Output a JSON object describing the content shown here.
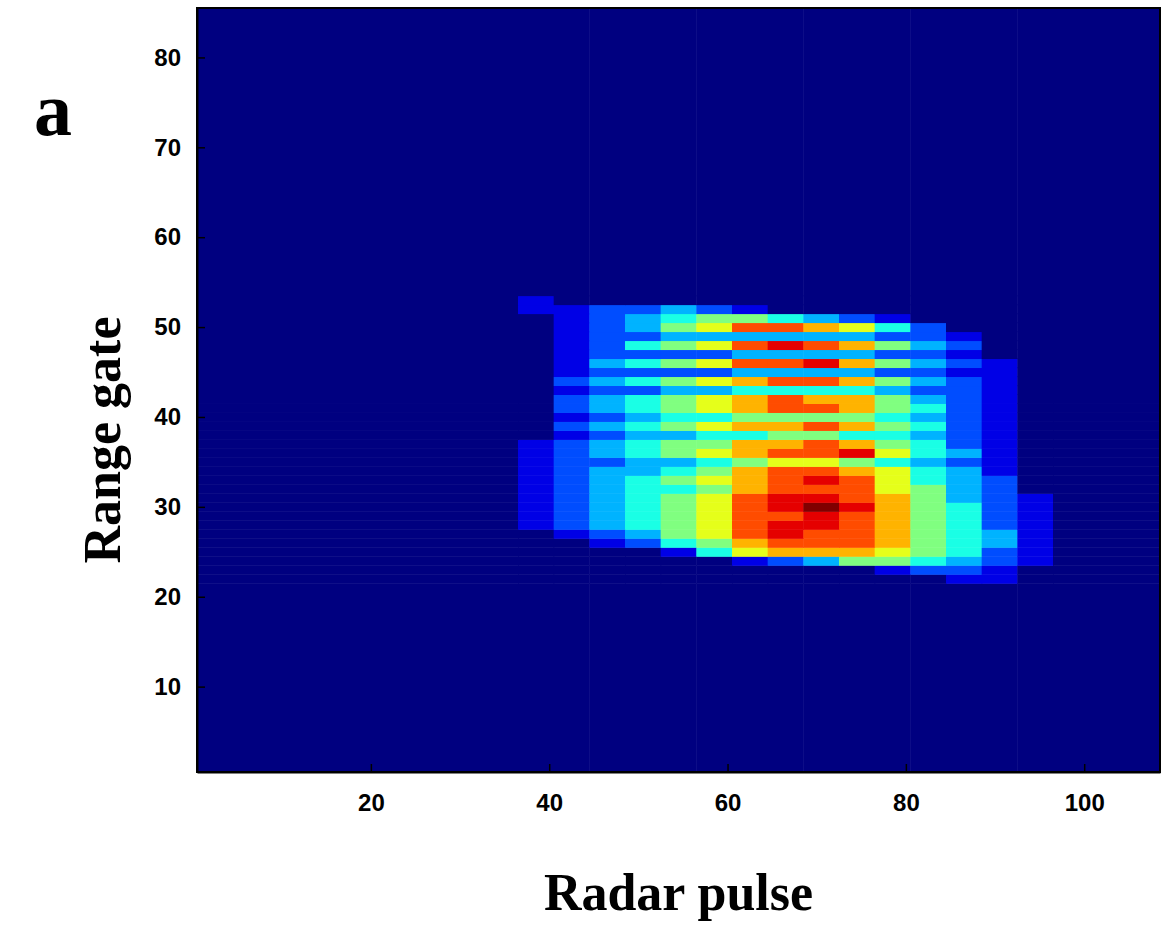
{
  "chart_data": {
    "type": "heatmap",
    "panel_label": "a",
    "x_label": "Radar pulse",
    "y_label": "Range gate",
    "xlim": [
      0.5,
      108.5
    ],
    "ylim": [
      0.5,
      85.5
    ],
    "xticks": [
      20,
      40,
      60,
      80,
      100
    ],
    "yticks": [
      10,
      20,
      30,
      40,
      50,
      60,
      70,
      80
    ],
    "zlim": [
      0,
      10
    ],
    "x_edges": [
      0.5,
      36.5,
      40.5,
      44.5,
      48.5,
      52.5,
      56.5,
      60.5,
      64.5,
      68.5,
      72.5,
      76.5,
      80.5,
      84.5,
      88.5,
      92.5,
      96.5,
      108.5
    ],
    "y_edges": [
      0.5,
      21.5,
      22.5,
      23.5,
      24.5,
      25.5,
      26.5,
      27.5,
      28.5,
      29.5,
      30.5,
      31.5,
      32.5,
      33.5,
      34.5,
      35.5,
      36.5,
      37.5,
      38.5,
      39.5,
      40.5,
      41.5,
      42.5,
      43.5,
      44.5,
      45.5,
      46.5,
      47.5,
      48.5,
      49.5,
      50.5,
      51.5,
      52.5,
      53.5,
      85.5
    ],
    "z": [
      [
        0,
        0,
        0,
        0,
        0,
        0,
        0,
        0,
        0,
        0,
        0,
        0,
        0,
        0,
        0,
        0,
        0
      ],
      [
        0,
        0,
        0,
        0,
        0,
        0,
        0,
        0,
        0,
        0,
        0,
        0,
        0,
        1,
        1,
        0,
        0
      ],
      [
        0,
        0,
        0,
        0,
        0,
        0,
        0,
        0,
        0,
        0,
        0,
        1,
        2,
        2,
        1,
        0,
        0
      ],
      [
        0,
        0,
        0,
        0,
        0,
        0,
        0,
        1,
        2,
        3,
        5,
        5,
        4,
        3,
        2,
        1,
        0
      ],
      [
        0,
        0,
        0,
        0,
        0,
        1,
        4,
        6,
        7,
        7,
        7,
        6,
        5,
        4,
        2,
        1,
        0
      ],
      [
        0,
        0,
        0,
        1,
        2,
        4,
        5,
        7,
        8,
        8,
        8,
        7,
        5,
        4,
        3,
        1,
        0
      ],
      [
        0,
        0,
        1,
        2,
        3,
        5,
        6,
        8,
        9,
        8,
        8,
        7,
        5,
        4,
        3,
        1,
        0
      ],
      [
        0,
        1,
        2,
        3,
        4,
        5,
        6,
        8,
        9,
        9,
        8,
        7,
        5,
        4,
        2,
        1,
        0
      ],
      [
        0,
        1,
        2,
        3,
        4,
        5,
        6,
        8,
        8,
        9,
        8,
        7,
        5,
        4,
        2,
        1,
        0
      ],
      [
        0,
        1,
        2,
        3,
        4,
        5,
        6,
        8,
        9,
        10,
        9,
        7,
        5,
        4,
        2,
        1,
        0
      ],
      [
        0,
        1,
        2,
        3,
        4,
        5,
        6,
        8,
        9,
        9,
        8,
        7,
        5,
        3,
        2,
        1,
        0
      ],
      [
        0,
        1,
        2,
        3,
        4,
        4,
        5,
        7,
        8,
        8,
        8,
        6,
        5,
        3,
        2,
        0,
        0
      ],
      [
        0,
        1,
        2,
        3,
        4,
        5,
        6,
        7,
        8,
        9,
        8,
        6,
        4,
        3,
        2,
        0,
        0
      ],
      [
        0,
        1,
        2,
        3,
        3,
        4,
        5,
        7,
        8,
        8,
        7,
        6,
        4,
        3,
        1,
        0,
        0
      ],
      [
        0,
        1,
        2,
        2,
        3,
        3,
        4,
        5,
        6,
        6,
        5,
        4,
        3,
        2,
        1,
        0,
        0
      ],
      [
        0,
        1,
        2,
        3,
        4,
        5,
        6,
        7,
        8,
        8,
        9,
        6,
        4,
        3,
        1,
        0,
        0
      ],
      [
        0,
        1,
        2,
        3,
        4,
        5,
        5,
        7,
        7,
        8,
        7,
        5,
        4,
        2,
        1,
        0,
        0
      ],
      [
        0,
        0,
        1,
        2,
        3,
        3,
        4,
        4,
        5,
        5,
        4,
        4,
        3,
        2,
        1,
        0,
        0
      ],
      [
        0,
        0,
        2,
        3,
        4,
        5,
        6,
        7,
        7,
        8,
        7,
        5,
        4,
        2,
        1,
        0,
        0
      ],
      [
        0,
        0,
        1,
        2,
        3,
        4,
        4,
        5,
        5,
        5,
        5,
        4,
        3,
        2,
        1,
        0,
        0
      ],
      [
        0,
        0,
        2,
        3,
        4,
        5,
        6,
        7,
        8,
        8,
        7,
        5,
        4,
        2,
        1,
        0,
        0
      ],
      [
        0,
        0,
        2,
        3,
        4,
        5,
        6,
        7,
        8,
        7,
        7,
        5,
        3,
        2,
        1,
        0,
        0
      ],
      [
        0,
        0,
        1,
        2,
        2,
        3,
        3,
        4,
        4,
        4,
        4,
        3,
        2,
        2,
        1,
        0,
        0
      ],
      [
        0,
        0,
        2,
        3,
        4,
        5,
        6,
        7,
        8,
        8,
        7,
        5,
        3,
        2,
        1,
        0,
        0
      ],
      [
        0,
        0,
        1,
        2,
        2,
        2,
        2,
        3,
        3,
        3,
        3,
        2,
        2,
        1,
        1,
        0,
        0
      ],
      [
        0,
        0,
        1,
        3,
        4,
        5,
        6,
        8,
        8,
        9,
        7,
        5,
        3,
        2,
        1,
        0,
        0
      ],
      [
        0,
        0,
        1,
        2,
        2,
        2,
        2,
        3,
        3,
        3,
        3,
        2,
        2,
        1,
        0,
        0,
        0
      ],
      [
        0,
        0,
        1,
        2,
        4,
        5,
        6,
        8,
        9,
        8,
        7,
        5,
        3,
        2,
        0,
        0,
        0
      ],
      [
        0,
        0,
        1,
        2,
        2,
        3,
        3,
        3,
        3,
        3,
        3,
        2,
        2,
        1,
        0,
        0,
        0
      ],
      [
        0,
        0,
        1,
        2,
        3,
        5,
        6,
        8,
        8,
        7,
        6,
        4,
        2,
        0,
        0,
        0,
        0
      ],
      [
        0,
        0,
        1,
        2,
        3,
        4,
        5,
        5,
        4,
        3,
        2,
        1,
        0,
        0,
        0,
        0,
        0
      ],
      [
        0,
        1,
        1,
        2,
        2,
        3,
        2,
        1,
        0,
        0,
        0,
        0,
        0,
        0,
        0,
        0,
        0
      ],
      [
        0,
        1,
        0,
        0,
        0,
        0,
        0,
        0,
        0,
        0,
        0,
        0,
        0,
        0,
        0,
        0,
        0
      ],
      [
        0,
        0,
        0,
        0,
        0,
        0,
        0,
        0,
        0,
        0,
        0,
        0,
        0,
        0,
        0,
        0,
        0
      ]
    ]
  }
}
